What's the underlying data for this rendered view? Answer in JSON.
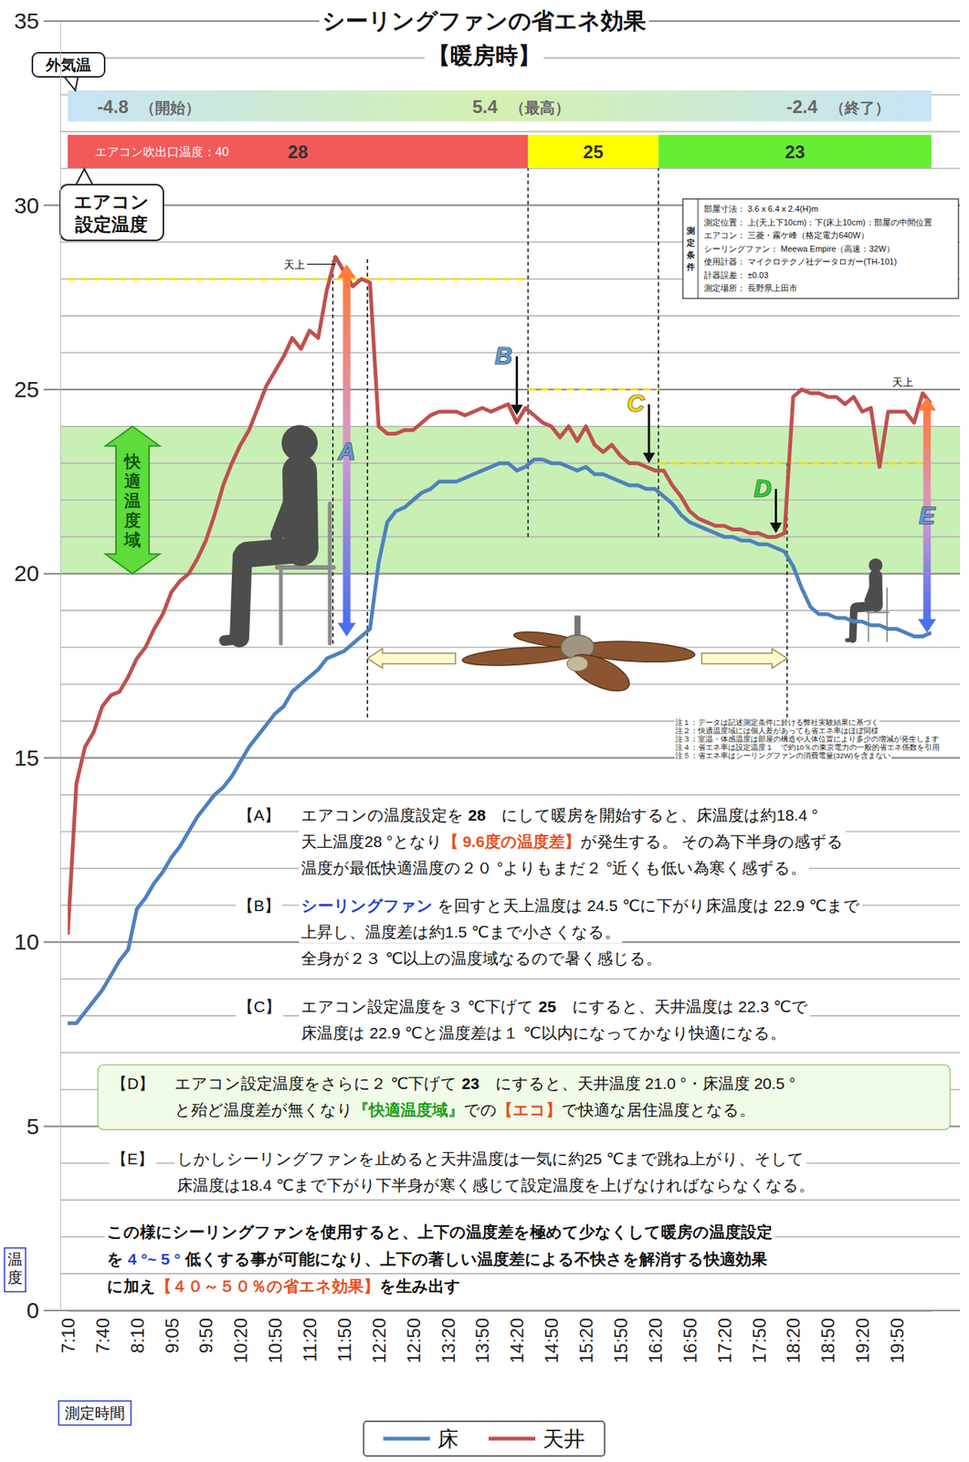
{
  "chart_data": {
    "type": "line",
    "title": "シーリングファンの省エネ効果",
    "subtitle": "【暖房時】",
    "x_label": "測定時間",
    "y_label": "温度",
    "categories": [
      "7:10",
      null,
      null,
      null,
      "7:40",
      null,
      null,
      null,
      "8:10",
      null,
      null,
      null,
      "9:05",
      null,
      null,
      null,
      "9:50",
      null,
      null,
      null,
      "10:20",
      null,
      null,
      null,
      "10:50",
      null,
      null,
      null,
      "11:20",
      null,
      null,
      null,
      "11:50",
      null,
      null,
      null,
      "12:20",
      null,
      null,
      null,
      "12:50",
      null,
      null,
      null,
      "13:20",
      null,
      null,
      null,
      "13:50",
      null,
      null,
      null,
      "14:20",
      null,
      null,
      null,
      "14:50",
      null,
      null,
      null,
      "15:20",
      null,
      null,
      null,
      "15:50",
      null,
      null,
      null,
      "16:20",
      null,
      null,
      null,
      "16:50",
      null,
      null,
      null,
      "17:20",
      null,
      null,
      null,
      "17:50",
      null,
      null,
      null,
      "18:20",
      null,
      null,
      null,
      "18:50",
      null,
      null,
      null,
      "19:20",
      null,
      null,
      null,
      "19:50",
      null,
      null,
      null,
      null
    ],
    "series": [
      {
        "name": "床",
        "color": "#4f81bd",
        "values": [
          7.8,
          7.8,
          8.1,
          8.4,
          8.7,
          9.1,
          9.5,
          9.8,
          10.9,
          11.2,
          11.6,
          11.9,
          12.3,
          12.6,
          13.0,
          13.4,
          13.7,
          14.0,
          14.2,
          14.5,
          14.9,
          15.3,
          15.6,
          15.9,
          16.2,
          16.4,
          16.8,
          17.0,
          17.2,
          17.4,
          17.7,
          17.8,
          17.9,
          18.1,
          18.3,
          18.5,
          20.3,
          21.4,
          21.7,
          21.8,
          22.0,
          22.2,
          22.3,
          22.5,
          22.5,
          22.5,
          22.6,
          22.7,
          22.8,
          22.9,
          23.0,
          23.0,
          22.8,
          22.9,
          23.1,
          23.1,
          23.0,
          23.0,
          22.9,
          22.8,
          22.9,
          22.7,
          22.7,
          22.6,
          22.5,
          22.4,
          22.4,
          22.3,
          22.3,
          22.1,
          21.9,
          21.6,
          21.4,
          21.3,
          21.2,
          21.1,
          21.0,
          21.0,
          20.9,
          20.9,
          20.8,
          20.8,
          20.7,
          20.6,
          20.2,
          19.6,
          19.1,
          18.9,
          18.9,
          18.8,
          18.8,
          18.7,
          18.7,
          18.6,
          18.6,
          18.5,
          18.5,
          18.4,
          18.3,
          18.3,
          18.4
        ]
      },
      {
        "name": "天井",
        "color": "#c0504d",
        "values": [
          10.2,
          14.3,
          15.3,
          15.7,
          16.4,
          16.7,
          16.8,
          17.2,
          17.7,
          18.0,
          18.5,
          18.9,
          19.5,
          19.8,
          20.0,
          20.4,
          20.9,
          21.6,
          22.4,
          23.0,
          23.5,
          23.9,
          24.5,
          25.1,
          25.5,
          25.9,
          26.4,
          26.1,
          26.6,
          26.4,
          27.7,
          28.6,
          28.2,
          27.8,
          28.0,
          27.9,
          24.0,
          23.8,
          23.8,
          23.9,
          23.9,
          24.1,
          24.3,
          24.4,
          24.4,
          24.4,
          24.3,
          24.4,
          24.5,
          24.4,
          24.5,
          24.6,
          24.1,
          24.5,
          24.3,
          24.1,
          24.0,
          23.7,
          24.0,
          23.6,
          24.0,
          23.5,
          23.3,
          23.5,
          23.2,
          23.0,
          23.0,
          22.9,
          22.8,
          22.8,
          22.4,
          22.1,
          21.7,
          21.5,
          21.4,
          21.3,
          21.3,
          21.2,
          21.2,
          21.1,
          21.1,
          21.0,
          21.0,
          21.1,
          24.8,
          25.0,
          24.9,
          24.9,
          24.8,
          24.8,
          24.6,
          24.8,
          24.4,
          24.5,
          22.9,
          24.4,
          24.4,
          24.4,
          24.1,
          24.9,
          24.6
        ]
      }
    ],
    "ylim": [
      0,
      35
    ],
    "yticks": [
      0,
      5,
      10,
      15,
      20,
      25,
      30,
      35
    ],
    "minor_yticks": [
      1,
      2,
      3,
      4,
      6,
      7,
      8,
      9,
      11,
      12,
      13,
      14,
      16,
      17,
      18,
      19,
      21,
      22,
      23,
      24,
      26,
      27,
      28,
      29,
      31,
      32,
      33,
      34
    ],
    "grid": true,
    "legend": "bottom",
    "outdoor": {
      "label": "外気温",
      "segments": [
        {
          "value": -4.8,
          "label": "（開始）",
          "x": 9.4
        },
        {
          "value": 5.4,
          "label": "（最高）",
          "x": 52.5
        },
        {
          "value": -2.4,
          "label": "（終了）",
          "x": 89.2
        }
      ]
    },
    "setpoint": {
      "label": "エアコン設定温度",
      "outlet_label": "エアコン吹出口温度：40",
      "segments": [
        {
          "value": 28,
          "start": 0,
          "end": 53.3,
          "color": "#f25a5a"
        },
        {
          "value": 25,
          "start": 53.3,
          "end": 68.4,
          "color": "#ffff00"
        },
        {
          "value": 23,
          "start": 68.4,
          "end": 100,
          "color": "#66ee33"
        }
      ]
    },
    "comfort_zone": {
      "label": "快適温度域",
      "range": [
        20,
        24
      ]
    },
    "vlines": [
      {
        "x": 30.7,
        "y": [
          18.1,
          28.6
        ]
      },
      {
        "x": 34.7,
        "y": [
          16.1,
          28.6
        ]
      },
      {
        "x": 53.3,
        "y": [
          21.0,
          31.0
        ]
      },
      {
        "x": 68.4,
        "y": [
          21.0,
          31.0
        ]
      },
      {
        "x": 83.3,
        "y": [
          16.1,
          23.0
        ]
      }
    ],
    "fan": {
      "x": [
        34.7,
        83.3
      ],
      "y": 17.7
    },
    "markers": [
      {
        "label": "A",
        "type": "double-arrow",
        "x": 32.3,
        "y": [
          28.4,
          18.3
        ],
        "color": "#5b9bd5"
      },
      {
        "label": "B",
        "type": "arrow",
        "x": 52,
        "y": [
          25.9,
          24.3
        ],
        "color": "#5b9bd5"
      },
      {
        "label": "C",
        "type": "arrow",
        "x": 67.3,
        "y": [
          24.6,
          23.0
        ],
        "color": "#ffd700"
      },
      {
        "label": "D",
        "type": "arrow",
        "x": 82,
        "y": [
          22.3,
          21.1
        ],
        "color": "#33cc33"
      },
      {
        "label": "E",
        "type": "double-arrow",
        "x": 99.5,
        "y": [
          24.8,
          18.4
        ],
        "color": "#5b9bd5"
      }
    ],
    "ceiling_labels": [
      {
        "text": "天上",
        "x": 25,
        "y": 28.3,
        "line_to": 31
      },
      {
        "text": "天上",
        "x": 95.5,
        "y": 25.1
      }
    ],
    "conditions": {
      "label": "測定条件",
      "rows": [
        "部屋寸法：  3.6 x 6.4 x 2.4(H)m",
        "測定位置：  上(天上下10cm)：下(床上10cm)：部屋の中間位置",
        "エアコン：  三菱・霧ケ峰（格定電力640W）",
        "シーリングファン：  Meewa Empire（高速：32W）",
        "使用計器：  マイクロテクノ社データロガー(TH-101)",
        "計器誤差：  ±0.03",
        "測定場所：  長野県上田市"
      ]
    },
    "notes": [
      "注１：データは記述測定条件に於ける弊社実験結果に基づく",
      "注２：快適温度域には個人差があっても省エネ率はほぼ同様",
      "注３：室温・体感温度は部屋の構造や人体位置により多少の増減が発生します",
      "注４：省エネ率は設定温度１　で約10％の東京電力の一般的省エネ係数を引用",
      "注５：省エネ率はシーリングファンの消費電量(32W)を含まない"
    ],
    "annotations": [
      {
        "label": "【A】",
        "lines": [
          [
            {
              "text": "エアコンの温度設定を "
            },
            {
              "text": "28",
              "color": "#000000"
            },
            {
              "text": "　にして暖房を開始すると、床温度は約18.4 °"
            }
          ],
          [
            {
              "text": "天上温度28 °となり"
            },
            {
              "text": "【 9.6度の温度差】",
              "color": "#e8501e"
            },
            {
              "text": "が発生する。 その為下半身の感ずる"
            }
          ],
          [
            {
              "text": "温度が最低快適温度の２０ °よりもまだ２ °近くも低い為寒く感ずる。"
            }
          ]
        ]
      },
      {
        "label": "【B】",
        "lines": [
          [
            {
              "text": "シーリングファン",
              "color": "#1f3fd0"
            },
            {
              "text": " を回すと天上温度は 24.5 ℃に下がり床温度は 22.9 ℃まで"
            }
          ],
          [
            {
              "text": "上昇し、温度差は約1.5 ℃まで小さくなる。"
            }
          ],
          [
            {
              "text": "全身が２３ ℃以上の温度域なるので暑く感じる。"
            }
          ]
        ]
      },
      {
        "label": "【C】",
        "lines": [
          [
            {
              "text": "エアコン設定温度を３ ℃下げて "
            },
            {
              "text": "25",
              "color": "#000000"
            },
            {
              "text": "　にすると、天井温度は 22.3 ℃で"
            }
          ],
          [
            {
              "text": "床温度は 22.9 ℃と温度差は１ ℃以内になってかなり快適になる。"
            }
          ]
        ]
      },
      {
        "label": "【E】",
        "lines": [
          [
            {
              "text": "しかしシーリングファンを止めると天井温度は一気に約25 ℃まで跳ね上がり、そして"
            }
          ],
          [
            {
              "text": "床温度は18.4 ℃まで下がり下半身が寒く感じて設定温度を上げなければならなくなる。"
            }
          ]
        ]
      }
    ],
    "highlight": {
      "label": "【D】",
      "lines": [
        [
          {
            "text": "エアコン設定温度をさらに２ ℃下げて "
          },
          {
            "text": "23",
            "color": "#000000"
          },
          {
            "text": "　にすると、天井温度 21.0 °・床温度 20.5 °"
          }
        ],
        [
          {
            "text": "と殆ど温度差が無くなり"
          },
          {
            "text": "『快適温度域』",
            "color": "#1a9e1a"
          },
          {
            "text": "での"
          },
          {
            "text": "【エコ】",
            "color": "#e8501e"
          },
          {
            "text": "で快適な居住温度となる。"
          }
        ]
      ]
    },
    "conclusion": {
      "lines": [
        [
          {
            "text": "この様にシーリングファンを使用すると、上下の温度差を極めて少なくして暖房の温度設定"
          }
        ],
        [
          {
            "text": "を "
          },
          {
            "text": "4 °~ 5 °",
            "color": "#1f3fd0"
          },
          {
            "text": " 低くする事が可能になり、上下の著しい温度差による不快さを解消する快適効果"
          }
        ],
        [
          {
            "text": "に加え"
          },
          {
            "text": "【４０～５０％の省エネ効果】",
            "color": "#e8501e"
          },
          {
            "text": "を生み出す"
          }
        ]
      ]
    }
  }
}
